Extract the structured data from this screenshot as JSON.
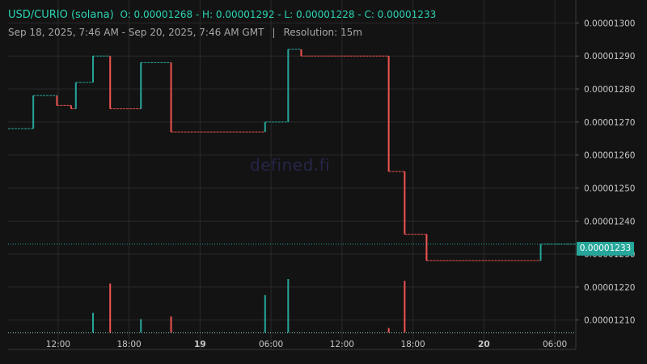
{
  "header": {
    "pair": "USD/CURIO (solana)",
    "ohlc": "O: 0.00001268 - H: 0.00001292 - L: 0.00001228 - C: 0.00001233",
    "range": "Sep 18, 2025, 7:46 AM - Sep 20, 2025, 7:46 AM GMT",
    "separator": "|",
    "resolution": "Resolution: 15m"
  },
  "watermark": "defined.fi",
  "current_price_label": "0.00001233",
  "colors": {
    "up": "#26a69a",
    "down": "#ef5350",
    "background": "#131313",
    "grid": "#2a2a2a",
    "axis_text": "#c8c8c8"
  },
  "chart_data": {
    "type": "candlestick",
    "title": "USD/CURIO (solana)",
    "resolution": "15m",
    "y_axis_position": "right",
    "ylim": [
      1.206e-05,
      1.305e-05
    ],
    "y_ticks": [
      "0.00001300",
      "0.00001290",
      "0.00001280",
      "0.00001270",
      "0.00001260",
      "0.00001250",
      "0.00001240",
      "0.00001230",
      "0.00001220",
      "0.00001210"
    ],
    "y_tick_values": [
      1.3e-05,
      1.29e-05,
      1.28e-05,
      1.27e-05,
      1.26e-05,
      1.25e-05,
      1.24e-05,
      1.23e-05,
      1.22e-05,
      1.21e-05
    ],
    "x_range_hours": [
      7.77,
      55.77
    ],
    "x_ticks": [
      {
        "label": "12:00",
        "hour": 12,
        "bold": false
      },
      {
        "label": "18:00",
        "hour": 18,
        "bold": false
      },
      {
        "label": "19",
        "hour": 24,
        "bold": true
      },
      {
        "label": "06:00",
        "hour": 30,
        "bold": false
      },
      {
        "label": "12:00",
        "hour": 36,
        "bold": false
      },
      {
        "label": "18:00",
        "hour": 42,
        "bold": false
      },
      {
        "label": "20",
        "hour": 48,
        "bold": true
      },
      {
        "label": "06:00",
        "hour": 54,
        "bold": false
      }
    ],
    "current_price": 1.233e-05,
    "steps": [
      {
        "from": 7.77,
        "to": 9.9,
        "price": 1.268e-05
      },
      {
        "from": 9.9,
        "to": 11.9,
        "price": 1.278e-05
      },
      {
        "from": 11.9,
        "to": 13.1,
        "price": 1.275e-05
      },
      {
        "from": 13.1,
        "to": 13.5,
        "price": 1.274e-05
      },
      {
        "from": 13.5,
        "to": 14.95,
        "price": 1.282e-05
      },
      {
        "from": 14.95,
        "to": 16.4,
        "price": 1.29e-05
      },
      {
        "from": 16.4,
        "to": 19.0,
        "price": 1.274e-05
      },
      {
        "from": 19.0,
        "to": 21.55,
        "price": 1.288e-05
      },
      {
        "from": 21.55,
        "to": 29.5,
        "price": 1.267e-05
      },
      {
        "from": 29.5,
        "to": 31.45,
        "price": 1.27e-05
      },
      {
        "from": 31.45,
        "to": 32.55,
        "price": 1.292e-05
      },
      {
        "from": 32.55,
        "to": 39.95,
        "price": 1.29e-05
      },
      {
        "from": 39.95,
        "to": 41.3,
        "price": 1.255e-05
      },
      {
        "from": 41.3,
        "to": 43.15,
        "price": 1.236e-05
      },
      {
        "from": 43.15,
        "to": 52.8,
        "price": 1.228e-05
      },
      {
        "from": 52.8,
        "to": 55.77,
        "price": 1.233e-05
      }
    ],
    "volume_bars": [
      {
        "hour": 14.95,
        "direction": "up",
        "height": 0.22
      },
      {
        "hour": 16.4,
        "direction": "down",
        "height": 0.55
      },
      {
        "hour": 19.0,
        "direction": "up",
        "height": 0.15
      },
      {
        "hour": 21.55,
        "direction": "down",
        "height": 0.18
      },
      {
        "hour": 29.5,
        "direction": "up",
        "height": 0.42
      },
      {
        "hour": 31.45,
        "direction": "up",
        "height": 0.6
      },
      {
        "hour": 39.95,
        "direction": "down",
        "height": 0.05
      },
      {
        "hour": 41.3,
        "direction": "down",
        "height": 0.58
      }
    ]
  }
}
